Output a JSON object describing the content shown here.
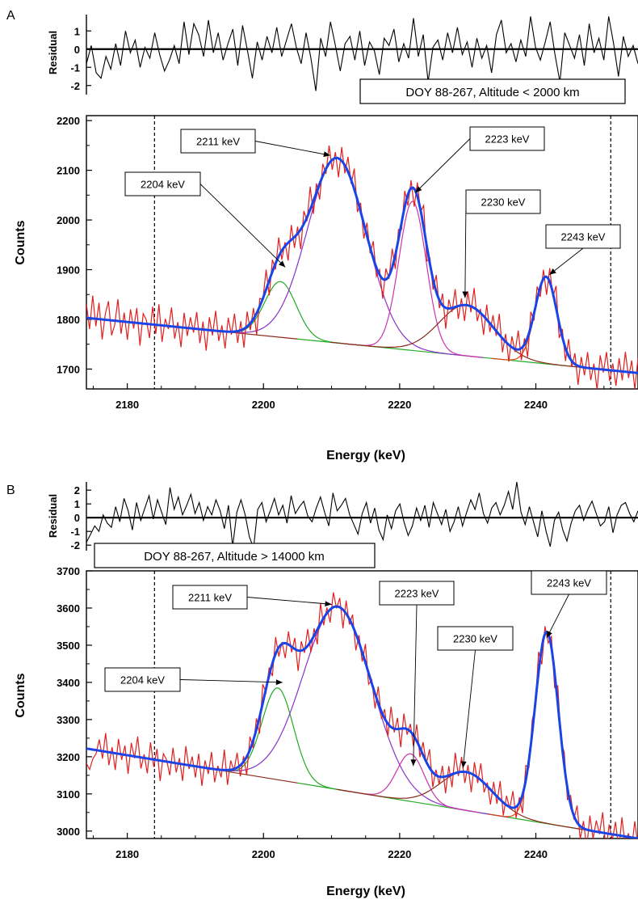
{
  "chart_data": [
    {
      "type": "line",
      "panel_label": "A",
      "label_box": "DOY 88-267, Altitude < 2000 km",
      "xlabel": "Energy (keV)",
      "ylabel": "Counts",
      "residual_label": "Residual",
      "xlim": [
        2174,
        2255
      ],
      "ylim": [
        1660,
        2210
      ],
      "residual_ylim": [
        -2.5,
        1.9
      ],
      "xticks": [
        2180,
        2200,
        2220,
        2240
      ],
      "xtick_labels": [
        "2180",
        "2200",
        "2220",
        "2240"
      ],
      "yticks": [
        1700,
        1800,
        1900,
        2000,
        2100,
        2200
      ],
      "ytick_labels": [
        "1700",
        "1800",
        "1900",
        "2000",
        "2100",
        "2200"
      ],
      "residual_yticks": [
        -2,
        -1,
        0,
        1
      ],
      "residual_ytick_labels": [
        "-2",
        "-1",
        "0",
        "1"
      ],
      "fit_range": [
        2184,
        2251
      ],
      "background": {
        "start": [
          2174,
          1803
        ],
        "end": [
          2255,
          1692
        ]
      },
      "peaks": [
        {
          "label": "2204 keV",
          "center": 2202.5,
          "amplitude": 112,
          "sigma": 2.3,
          "color": "#22aa22"
        },
        {
          "label": "2211 keV",
          "center": 2210.8,
          "amplitude": 372,
          "sigma": 4.3,
          "color": "#8833cc"
        },
        {
          "label": "2223 keV",
          "center": 2221.9,
          "amplitude": 300,
          "sigma": 2.0,
          "color": "#cc33aa"
        },
        {
          "label": "2230 keV",
          "center": 2229.8,
          "amplitude": 102,
          "sigma": 4.0,
          "color": "#8b2a1a"
        },
        {
          "label": "2243 keV",
          "center": 2241.5,
          "amplitude": 174,
          "sigma": 1.6,
          "color": "#dd4411"
        }
      ],
      "annotations": [
        {
          "text": "2204 keV",
          "target": [
            2203.2,
            1905
          ]
        },
        {
          "text": "2211 keV",
          "target": [
            2209.8,
            2130
          ]
        },
        {
          "text": "2223 keV",
          "target": [
            2222.3,
            2055
          ]
        },
        {
          "text": "2230 keV",
          "target": [
            2229.6,
            1843
          ]
        },
        {
          "text": "2243 keV",
          "target": [
            2242.0,
            1890
          ]
        }
      ],
      "series": [
        {
          "color": "#e02020",
          "role": "data"
        },
        {
          "color": "#1a44e6",
          "role": "total fit"
        }
      ],
      "residuals": [
        -0.8,
        0.2,
        -1.3,
        -1.6,
        -0.4,
        -1.1,
        0.3,
        -0.9,
        1.0,
        -0.2,
        0.5,
        -1.0,
        0.1,
        -0.5,
        0.9,
        -0.3,
        -1.2,
        -0.6,
        0.2,
        -0.8,
        1.5,
        -0.3,
        1.4,
        0.8,
        -0.4,
        1.6,
        -0.2,
        0.9,
        -0.6,
        0.3,
        1.1,
        -0.9,
        1.3,
        -0.1,
        -1.6,
        0.4,
        -0.6,
        0.7,
        -0.2,
        1.2,
        -0.4,
        0.5,
        1.4,
        0.1,
        -0.8,
        0.9,
        -0.5,
        -2.3,
        0.6,
        -0.4,
        1.5,
        0.2,
        -1.2,
        0.3,
        0.7,
        -0.6,
        1.0,
        -0.9,
        0.4,
        -0.1,
        -1.4,
        0.6,
        0.2,
        1.1,
        -0.7,
        0.3,
        -0.5,
        1.7,
        -0.4,
        0.8,
        -1.8,
        0.1,
        0.5,
        -0.6,
        0.9,
        -0.2,
        1.2,
        -0.3,
        0.4,
        -1.0,
        0.6,
        -0.5,
        0.2,
        -1.3,
        0.8,
        1.6,
        -0.2,
        0.3,
        -0.7,
        0.5,
        -0.4,
        1.8,
        0.1,
        -0.6,
        0.4,
        1.5,
        -0.3,
        -1.8,
        0.9,
        0.2,
        -0.5,
        0.8,
        -0.9,
        1.4,
        -0.2,
        0.6,
        -0.6,
        1.8,
        0.3,
        -1.5,
        0.7,
        -0.4,
        0.2,
        -0.8
      ],
      "data_noise": [
        28,
        -22,
        46,
        -15,
        33,
        -40,
        12,
        38,
        -30,
        -8,
        44,
        -25,
        18,
        -36,
        26,
        -12,
        30,
        -45,
        20,
        8,
        -28,
        36,
        -18,
        42,
        -33,
        14,
        -6,
        38,
        -24,
        10,
        -40,
        30,
        -16,
        22,
        -8,
        34,
        -28,
        16,
        -42,
        26,
        -10,
        40,
        -20,
        12,
        -34,
        28,
        -6,
        36,
        -24,
        18,
        -38,
        30,
        -14,
        22,
        -44,
        16,
        -2,
        40,
        -30,
        24,
        -12,
        38,
        -18,
        8,
        -36,
        30,
        -22,
        14,
        -40,
        26,
        -8,
        46,
        -26,
        18,
        -32,
        24,
        -10,
        36,
        -20,
        12,
        -38,
        28,
        -16,
        30,
        -8,
        42,
        -24,
        18,
        -30,
        26,
        -12,
        34,
        -18,
        10,
        -40,
        22,
        -6,
        38,
        -28,
        20,
        -14,
        32,
        -22,
        16,
        -36,
        28,
        -4,
        44,
        -30,
        12,
        -20,
        34,
        -16,
        24,
        -42,
        18,
        -8,
        36,
        -26,
        14,
        -32,
        28,
        -12,
        40,
        -22,
        8,
        -38,
        30,
        -18,
        24,
        -10,
        42,
        -28,
        16,
        -34,
        22,
        -6,
        38,
        -24,
        12,
        -40,
        30,
        -14,
        26,
        -20,
        18,
        -36,
        28,
        -8,
        44,
        -30,
        16,
        -26,
        34,
        -12,
        22,
        -38,
        20,
        -16,
        32,
        -24,
        10,
        -42,
        28,
        -6,
        36,
        -22,
        14,
        -30,
        26,
        -18,
        40,
        -12,
        24,
        -34,
        30
      ]
    },
    {
      "type": "line",
      "panel_label": "B",
      "label_box": "DOY 88-267, Altitude > 14000 km",
      "xlabel": "Energy (keV)",
      "ylabel": "Counts",
      "residual_label": "Residual",
      "xlim": [
        2174,
        2255
      ],
      "ylim": [
        2980,
        3700
      ],
      "residual_ylim": [
        -2.4,
        2.6
      ],
      "xticks": [
        2180,
        2200,
        2220,
        2240
      ],
      "xtick_labels": [
        "2180",
        "2200",
        "2220",
        "2240"
      ],
      "yticks": [
        3000,
        3100,
        3200,
        3300,
        3400,
        3500,
        3600,
        3700
      ],
      "ytick_labels": [
        "3000",
        "3100",
        "3200",
        "3300",
        "3400",
        "3500",
        "3600",
        "3700"
      ],
      "residual_yticks": [
        -2,
        -1,
        0,
        1,
        2
      ],
      "residual_ytick_labels": [
        "-2",
        "-1",
        "0",
        "1",
        "2"
      ],
      "fit_range": [
        2184,
        2251
      ],
      "background": {
        "start": [
          2174,
          3222
        ],
        "end": [
          2255,
          2980
        ]
      },
      "peaks": [
        {
          "label": "2204 keV",
          "center": 2202.1,
          "amplitude": 247,
          "sigma": 2.3,
          "color": "#22aa22"
        },
        {
          "label": "2211 keV",
          "center": 2210.9,
          "amplitude": 492,
          "sigma": 5.0,
          "color": "#8833cc"
        },
        {
          "label": "2223 keV",
          "center": 2221.6,
          "amplitude": 128,
          "sigma": 2.0,
          "color": "#cc33aa"
        },
        {
          "label": "2230 keV",
          "center": 2229.8,
          "amplitude": 103,
          "sigma": 3.8,
          "color": "#8b2a1a"
        },
        {
          "label": "2243 keV",
          "center": 2241.6,
          "amplitude": 515,
          "sigma": 1.7,
          "color": "#dd4411"
        }
      ],
      "annotations": [
        {
          "text": "2204 keV",
          "target": [
            2202.8,
            3400
          ]
        },
        {
          "text": "2211 keV",
          "target": [
            2210.0,
            3610
          ]
        },
        {
          "text": "2223 keV",
          "target": [
            2222.0,
            3175
          ]
        },
        {
          "text": "2230 keV",
          "target": [
            2229.3,
            3170
          ]
        },
        {
          "text": "2243 keV",
          "target": [
            2241.6,
            3520
          ]
        }
      ],
      "series": [
        {
          "color": "#e02020",
          "role": "data"
        },
        {
          "color": "#1a44e6",
          "role": "total fit"
        }
      ],
      "residuals": [
        -1.8,
        -1.2,
        -0.6,
        -1.0,
        0.2,
        -0.4,
        -0.7,
        0.8,
        -0.3,
        1.4,
        0.5,
        -0.9,
        1.1,
        -0.2,
        0.7,
        1.6,
        -0.1,
        1.3,
        0.4,
        -0.5,
        2.2,
        0.6,
        1.5,
        0.2,
        0.9,
        1.7,
        0.3,
        1.1,
        -0.2,
        0.8,
        0.2,
        1.3,
        0.5,
        -0.8,
        0.9,
        -2.1,
        0.4,
        1.3,
        0.2,
        -1.4,
        -2.2,
        0.6,
        1.1,
        -0.3,
        0.5,
        1.4,
        0.2,
        0.9,
        -0.4,
        1.6,
        0.3,
        0.8,
        1.2,
        0.1,
        -0.3,
        0.7,
        1.5,
        0.4,
        -0.6,
        1.8,
        0.5,
        0.9,
        1.4,
        0.2,
        -0.5,
        -1.2,
        0.3,
        1.1,
        -0.4,
        0.7,
        -0.9,
        -1.6,
        0.2,
        -0.8,
        0.5,
        1.0,
        -0.3,
        -1.3,
        -0.6,
        0.7,
        -0.2,
        0.9,
        -0.7,
        1.1,
        0.3,
        -0.5,
        0.6,
        -1.0,
        -0.3,
        0.8,
        -0.6,
        0.4,
        1.3,
        0.6,
        1.8,
        0.3,
        -0.4,
        0.7,
        1.1,
        0.2,
        0.9,
        1.9,
        0.6,
        2.6,
        0.4,
        -0.5,
        0.8,
        -0.3,
        -1.4,
        0.5,
        -1.0,
        -2.1,
        -0.2,
        0.4,
        -0.9,
        -1.7,
        -0.4,
        0.5,
        0.9,
        -0.2,
        0.6,
        1.2,
        0.3,
        -0.6,
        -0.3,
        0.8,
        -1.1,
        0.2,
        0.9,
        1.1,
        0.3,
        -0.3,
        0.5
      ],
      "data_noise": [
        -40,
        -55,
        -25,
        -10,
        30,
        -20,
        50,
        -35,
        15,
        -45,
        40,
        -15,
        25,
        -50,
        35,
        -5,
        55,
        -30,
        10,
        -40,
        45,
        -20,
        30,
        -55,
        20,
        5,
        -35,
        40,
        -25,
        15,
        -45,
        50,
        -10,
        25,
        -30,
        35,
        -50,
        20,
        -15,
        45,
        -35,
        10,
        -20,
        55,
        -40,
        25,
        -5,
        40,
        -30,
        15,
        -50,
        35,
        -20,
        30,
        -45,
        50,
        -10,
        20,
        -35,
        45,
        -25,
        5,
        -40,
        35,
        -15,
        30,
        -55,
        25,
        -10,
        45,
        -30,
        20,
        -40,
        55,
        -20,
        15,
        -35,
        40,
        -5,
        25,
        -50,
        35,
        -15,
        30,
        -45,
        20,
        -25,
        50,
        -30,
        10,
        -40,
        45,
        -20,
        25,
        -35,
        55,
        -10,
        30,
        -50,
        40,
        -15,
        20,
        -30,
        45,
        -25,
        35,
        -5,
        50,
        -40,
        15,
        -20,
        30,
        -45,
        25,
        -35,
        55,
        -10,
        40,
        -30,
        20,
        -50,
        35,
        -15,
        45,
        -25,
        10,
        -40,
        30,
        -20,
        50,
        -35,
        25,
        -5,
        45,
        -30,
        15,
        -50,
        40,
        -20,
        35,
        -10,
        55,
        -45,
        20,
        -25,
        30,
        -40,
        50,
        -15,
        35,
        -30,
        25,
        -10,
        45,
        -35,
        20,
        -50,
        40,
        -20,
        30,
        -5,
        55,
        -45,
        25,
        -15,
        35,
        -40,
        50,
        -25,
        10,
        -30,
        45,
        -20
      ]
    }
  ]
}
